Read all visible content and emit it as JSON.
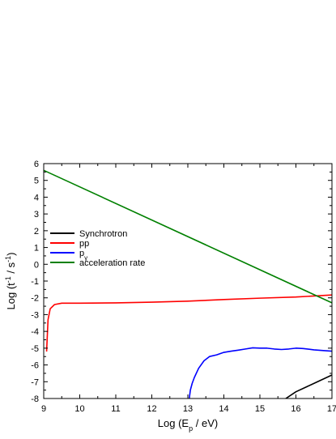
{
  "chart_data": {
    "type": "line",
    "title": "",
    "xlabel": {
      "parts": [
        {
          "text": "Log (E",
          "baseline": "normal"
        },
        {
          "text": "p",
          "baseline": "sub"
        },
        {
          "text": " / eV)",
          "baseline": "normal"
        }
      ]
    },
    "ylabel": {
      "parts": [
        {
          "text": "Log (t",
          "baseline": "normal"
        },
        {
          "text": "-1",
          "baseline": "super"
        },
        {
          "text": " / s",
          "baseline": "normal"
        },
        {
          "text": "-1",
          "baseline": "super"
        },
        {
          "text": ")",
          "baseline": "normal"
        }
      ]
    },
    "xlim": [
      9,
      17
    ],
    "ylim": [
      -8,
      6
    ],
    "xticks": [
      {
        "value": 9,
        "label": "9"
      },
      {
        "value": 10,
        "label": "10"
      },
      {
        "value": 11,
        "label": "11"
      },
      {
        "value": 12,
        "label": "12"
      },
      {
        "value": 13,
        "label": "13"
      },
      {
        "value": 14,
        "label": "14"
      },
      {
        "value": 15,
        "label": "15"
      },
      {
        "value": 16,
        "label": "16"
      },
      {
        "value": 17,
        "label": "17"
      }
    ],
    "yticks": [
      {
        "value": 6,
        "label": "6"
      },
      {
        "value": 5,
        "label": "5"
      },
      {
        "value": 4,
        "label": "4"
      },
      {
        "value": 3,
        "label": "3"
      },
      {
        "value": 2,
        "label": "2"
      },
      {
        "value": 1,
        "label": "1"
      },
      {
        "value": 0,
        "label": "0"
      },
      {
        "value": -1,
        "label": "-1"
      },
      {
        "value": -2,
        "label": "-2"
      },
      {
        "value": -3,
        "label": "-3"
      },
      {
        "value": -4,
        "label": "-4"
      },
      {
        "value": -5,
        "label": "-5"
      },
      {
        "value": -6,
        "label": "-6"
      },
      {
        "value": -7,
        "label": "-7"
      },
      {
        "value": -8,
        "label": "-8"
      }
    ],
    "grid": false,
    "legend_position": "left-middle",
    "series": [
      {
        "name": "Synchrotron",
        "label_parts": [
          {
            "text": "Synchrotron",
            "baseline": "normal"
          }
        ],
        "color": "#000000",
        "points": [
          [
            15.72,
            -8.0
          ],
          [
            16.0,
            -7.6
          ],
          [
            16.3,
            -7.3
          ],
          [
            16.65,
            -6.95
          ],
          [
            17.0,
            -6.6
          ]
        ]
      },
      {
        "name": "pp",
        "label_parts": [
          {
            "text": "pp",
            "baseline": "normal"
          }
        ],
        "color": "#ff0000",
        "points": [
          [
            9.08,
            -5.2
          ],
          [
            9.12,
            -3.3
          ],
          [
            9.18,
            -2.65
          ],
          [
            9.3,
            -2.4
          ],
          [
            9.5,
            -2.32
          ],
          [
            10.0,
            -2.32
          ],
          [
            11.0,
            -2.3
          ],
          [
            12.0,
            -2.26
          ],
          [
            13.0,
            -2.2
          ],
          [
            14.0,
            -2.1
          ],
          [
            15.0,
            -2.02
          ],
          [
            16.0,
            -1.95
          ],
          [
            17.0,
            -1.83
          ]
        ]
      },
      {
        "name": "pγ",
        "label_parts": [
          {
            "text": "p",
            "baseline": "normal"
          },
          {
            "text": "γ",
            "baseline": "sub"
          }
        ],
        "color": "#0000ff",
        "points": [
          [
            13.04,
            -8.0
          ],
          [
            13.07,
            -7.5
          ],
          [
            13.12,
            -7.1
          ],
          [
            13.18,
            -6.75
          ],
          [
            13.3,
            -6.2
          ],
          [
            13.45,
            -5.75
          ],
          [
            13.6,
            -5.5
          ],
          [
            13.8,
            -5.4
          ],
          [
            14.0,
            -5.25
          ],
          [
            14.2,
            -5.18
          ],
          [
            14.4,
            -5.12
          ],
          [
            14.6,
            -5.05
          ],
          [
            14.8,
            -4.98
          ],
          [
            15.0,
            -5.0
          ],
          [
            15.2,
            -5.0
          ],
          [
            15.4,
            -5.05
          ],
          [
            15.6,
            -5.08
          ],
          [
            15.8,
            -5.05
          ],
          [
            16.0,
            -5.0
          ],
          [
            16.2,
            -5.02
          ],
          [
            16.5,
            -5.1
          ],
          [
            16.8,
            -5.15
          ],
          [
            17.0,
            -5.18
          ]
        ]
      },
      {
        "name": "acceleration rate",
        "label_parts": [
          {
            "text": "acceleration rate",
            "baseline": "normal"
          }
        ],
        "color": "#008000",
        "points": [
          [
            9.0,
            5.6
          ],
          [
            17.0,
            -2.3
          ]
        ]
      }
    ]
  }
}
